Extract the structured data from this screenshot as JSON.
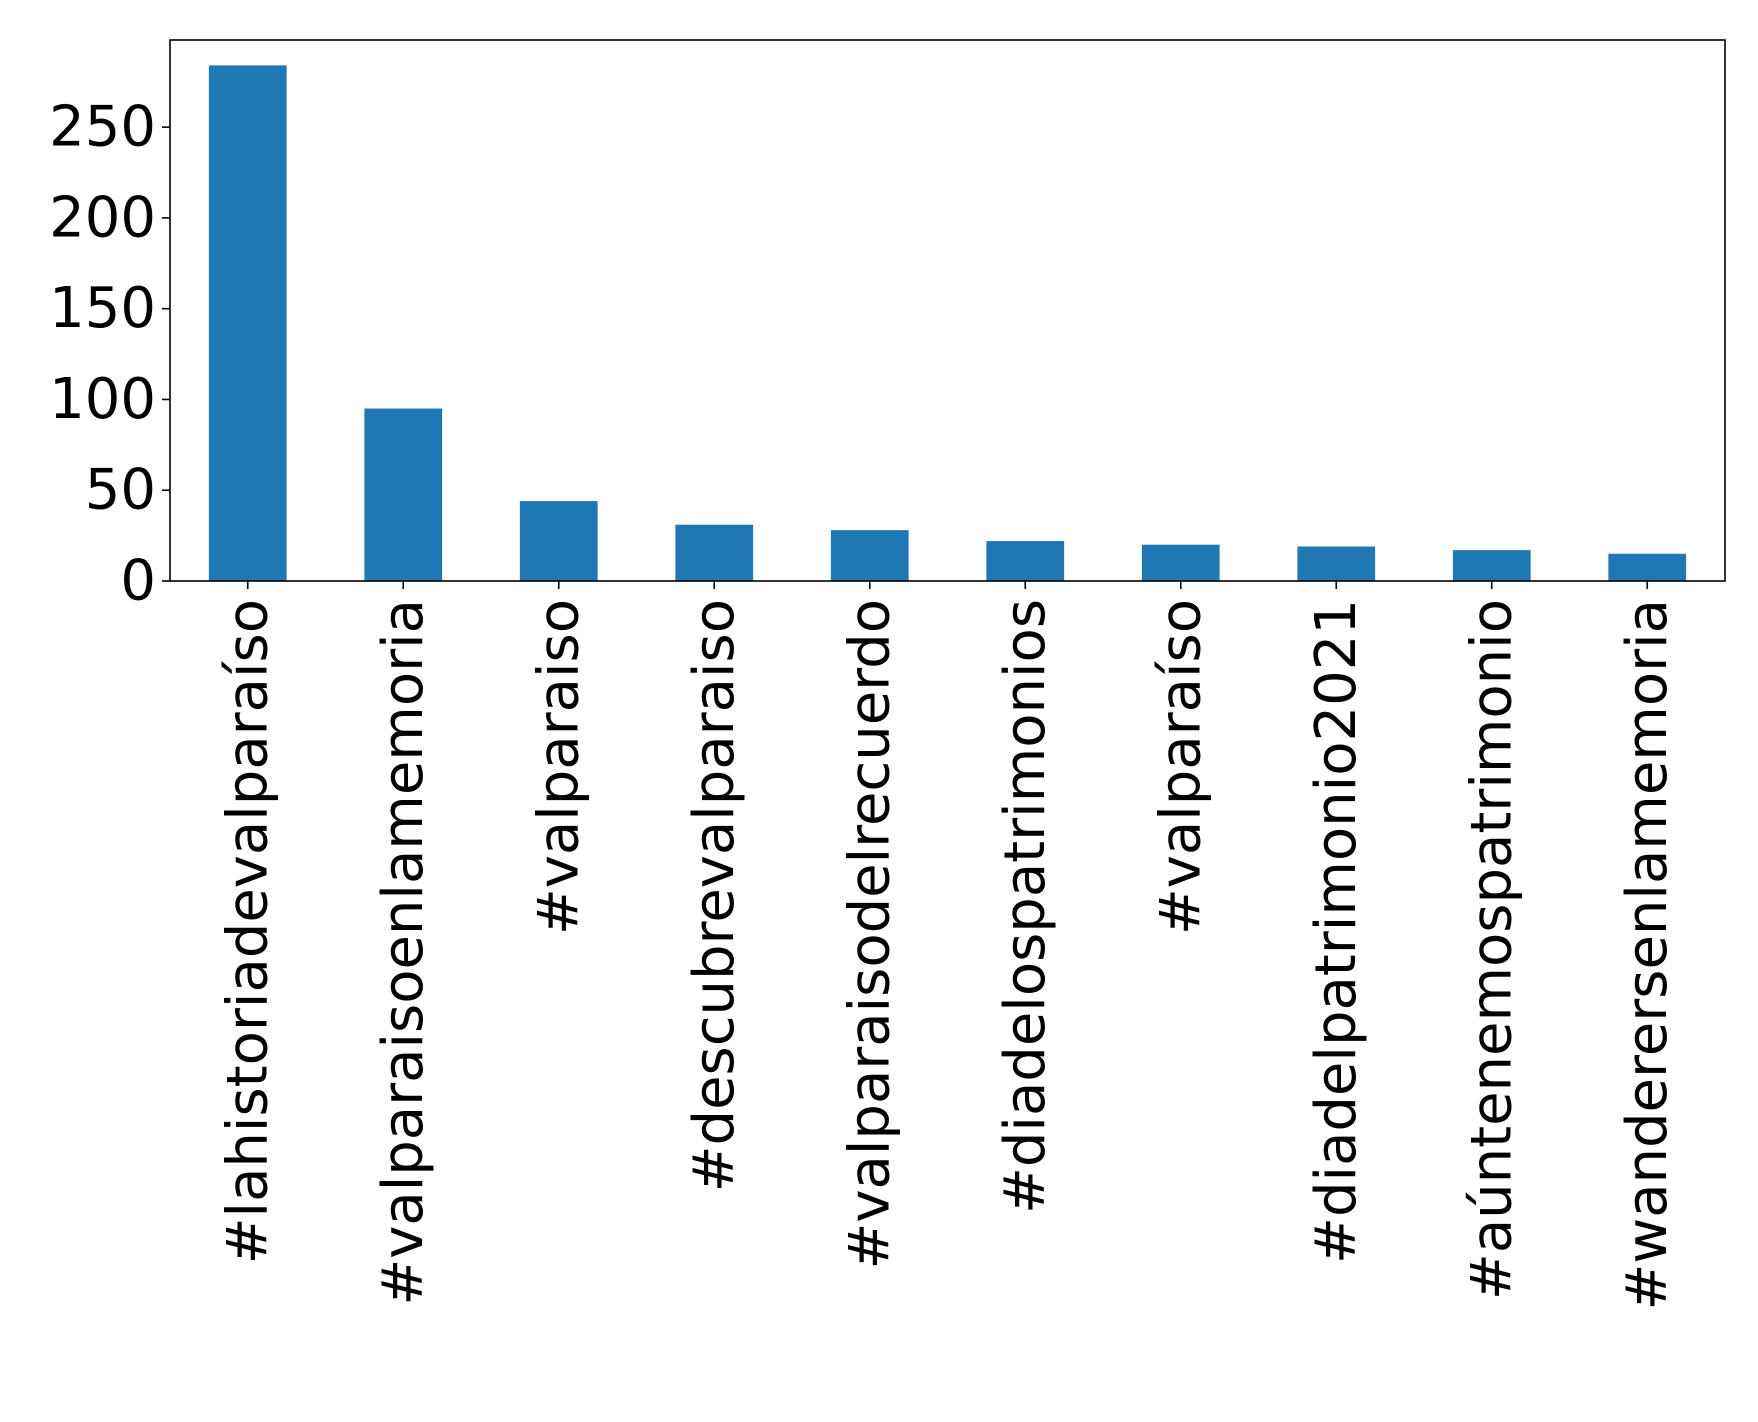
{
  "chart_data": {
    "type": "bar",
    "title": "",
    "xlabel": "",
    "ylabel": "",
    "categories": [
      "#lahistoriadevalparaíso",
      "#valparaisoenlamemoria",
      "#valparaiso",
      "#descubrevalparaiso",
      "#valparaisodelrecuerdo",
      "#diadelospatrimonios",
      "#valparaíso",
      "#diadelpatrimonio2021",
      "#aúntenemospatrimonio",
      "#wanderersenlamemoria"
    ],
    "values": [
      284,
      95,
      44,
      31,
      28,
      22,
      20,
      19,
      17,
      15
    ],
    "ylim": [
      0,
      298
    ],
    "yticks": [
      0,
      50,
      100,
      150,
      200,
      250
    ],
    "grid": false,
    "legend": "none",
    "colors": {
      "bar": "#1f77b4",
      "axis": "#000000",
      "text": "#000000"
    }
  }
}
